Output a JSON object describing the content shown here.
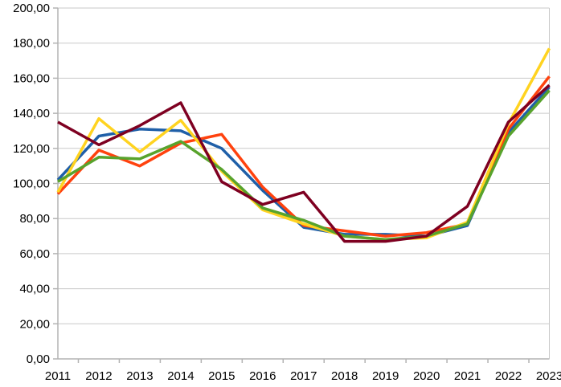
{
  "chart_data": {
    "type": "line",
    "title": "",
    "xlabel": "",
    "ylabel": "",
    "categories": [
      "2011",
      "2012",
      "2013",
      "2014",
      "2015",
      "2016",
      "2017",
      "2018",
      "2019",
      "2020",
      "2021",
      "2022",
      "2023"
    ],
    "series": [
      {
        "name": "blue",
        "color": "#1f5fa8",
        "values": [
          102,
          127,
          131,
          130,
          120,
          96,
          75,
          71,
          71,
          70,
          76,
          129,
          155
        ]
      },
      {
        "name": "red-orange",
        "color": "#ff420e",
        "values": [
          94,
          119,
          110,
          123,
          128,
          98,
          76,
          73,
          70,
          72,
          77,
          131,
          161
        ]
      },
      {
        "name": "yellow",
        "color": "#ffd320",
        "values": [
          95,
          137,
          118,
          136,
          107,
          85,
          77,
          70,
          68,
          69,
          78,
          134,
          177
        ]
      },
      {
        "name": "green",
        "color": "#58a32c",
        "values": [
          101,
          115,
          114,
          124,
          108,
          86,
          79,
          70,
          68,
          70,
          77,
          127,
          153
        ]
      },
      {
        "name": "dark-red",
        "color": "#7e0021",
        "values": [
          135,
          122,
          133,
          146,
          101,
          88,
          95,
          67,
          67,
          70,
          87,
          135,
          156
        ]
      }
    ],
    "ylim": [
      0,
      200
    ],
    "y_step": 20,
    "y_tick_labels": [
      "0,00",
      "20,00",
      "40,00",
      "60,00",
      "80,00",
      "100,00",
      "120,00",
      "140,00",
      "160,00",
      "180,00",
      "200,00"
    ],
    "decimal_separator": ",",
    "grid": true,
    "legend": "none",
    "colors": {
      "background": "#ffffff",
      "gridline": "#c9c9c9",
      "axis": "#b3b3b3",
      "tick_text": "#000000"
    },
    "line_width": 3.5
  }
}
